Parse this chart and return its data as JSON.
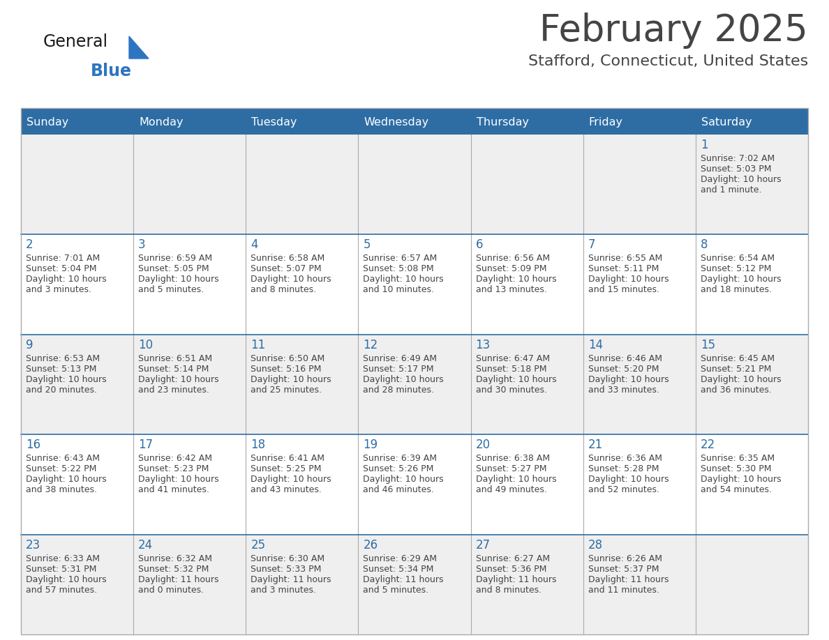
{
  "title": "February 2025",
  "subtitle": "Stafford, Connecticut, United States",
  "header_color": "#2E6DA4",
  "header_text_color": "#FFFFFF",
  "day_names": [
    "Sunday",
    "Monday",
    "Tuesday",
    "Wednesday",
    "Thursday",
    "Friday",
    "Saturday"
  ],
  "background_color": "#FFFFFF",
  "cell_bg_gray": "#EFEFEF",
  "cell_bg_white": "#FFFFFF",
  "grid_color": "#AAAAAA",
  "date_color": "#2E6DA4",
  "text_color": "#444444",
  "logo_general_color": "#1A1A1A",
  "logo_blue_color": "#2E75C0",
  "weeks": [
    [
      {
        "day": null,
        "info": null
      },
      {
        "day": null,
        "info": null
      },
      {
        "day": null,
        "info": null
      },
      {
        "day": null,
        "info": null
      },
      {
        "day": null,
        "info": null
      },
      {
        "day": null,
        "info": null
      },
      {
        "day": 1,
        "info": "Sunrise: 7:02 AM\nSunset: 5:03 PM\nDaylight: 10 hours\nand 1 minute."
      }
    ],
    [
      {
        "day": 2,
        "info": "Sunrise: 7:01 AM\nSunset: 5:04 PM\nDaylight: 10 hours\nand 3 minutes."
      },
      {
        "day": 3,
        "info": "Sunrise: 6:59 AM\nSunset: 5:05 PM\nDaylight: 10 hours\nand 5 minutes."
      },
      {
        "day": 4,
        "info": "Sunrise: 6:58 AM\nSunset: 5:07 PM\nDaylight: 10 hours\nand 8 minutes."
      },
      {
        "day": 5,
        "info": "Sunrise: 6:57 AM\nSunset: 5:08 PM\nDaylight: 10 hours\nand 10 minutes."
      },
      {
        "day": 6,
        "info": "Sunrise: 6:56 AM\nSunset: 5:09 PM\nDaylight: 10 hours\nand 13 minutes."
      },
      {
        "day": 7,
        "info": "Sunrise: 6:55 AM\nSunset: 5:11 PM\nDaylight: 10 hours\nand 15 minutes."
      },
      {
        "day": 8,
        "info": "Sunrise: 6:54 AM\nSunset: 5:12 PM\nDaylight: 10 hours\nand 18 minutes."
      }
    ],
    [
      {
        "day": 9,
        "info": "Sunrise: 6:53 AM\nSunset: 5:13 PM\nDaylight: 10 hours\nand 20 minutes."
      },
      {
        "day": 10,
        "info": "Sunrise: 6:51 AM\nSunset: 5:14 PM\nDaylight: 10 hours\nand 23 minutes."
      },
      {
        "day": 11,
        "info": "Sunrise: 6:50 AM\nSunset: 5:16 PM\nDaylight: 10 hours\nand 25 minutes."
      },
      {
        "day": 12,
        "info": "Sunrise: 6:49 AM\nSunset: 5:17 PM\nDaylight: 10 hours\nand 28 minutes."
      },
      {
        "day": 13,
        "info": "Sunrise: 6:47 AM\nSunset: 5:18 PM\nDaylight: 10 hours\nand 30 minutes."
      },
      {
        "day": 14,
        "info": "Sunrise: 6:46 AM\nSunset: 5:20 PM\nDaylight: 10 hours\nand 33 minutes."
      },
      {
        "day": 15,
        "info": "Sunrise: 6:45 AM\nSunset: 5:21 PM\nDaylight: 10 hours\nand 36 minutes."
      }
    ],
    [
      {
        "day": 16,
        "info": "Sunrise: 6:43 AM\nSunset: 5:22 PM\nDaylight: 10 hours\nand 38 minutes."
      },
      {
        "day": 17,
        "info": "Sunrise: 6:42 AM\nSunset: 5:23 PM\nDaylight: 10 hours\nand 41 minutes."
      },
      {
        "day": 18,
        "info": "Sunrise: 6:41 AM\nSunset: 5:25 PM\nDaylight: 10 hours\nand 43 minutes."
      },
      {
        "day": 19,
        "info": "Sunrise: 6:39 AM\nSunset: 5:26 PM\nDaylight: 10 hours\nand 46 minutes."
      },
      {
        "day": 20,
        "info": "Sunrise: 6:38 AM\nSunset: 5:27 PM\nDaylight: 10 hours\nand 49 minutes."
      },
      {
        "day": 21,
        "info": "Sunrise: 6:36 AM\nSunset: 5:28 PM\nDaylight: 10 hours\nand 52 minutes."
      },
      {
        "day": 22,
        "info": "Sunrise: 6:35 AM\nSunset: 5:30 PM\nDaylight: 10 hours\nand 54 minutes."
      }
    ],
    [
      {
        "day": 23,
        "info": "Sunrise: 6:33 AM\nSunset: 5:31 PM\nDaylight: 10 hours\nand 57 minutes."
      },
      {
        "day": 24,
        "info": "Sunrise: 6:32 AM\nSunset: 5:32 PM\nDaylight: 11 hours\nand 0 minutes."
      },
      {
        "day": 25,
        "info": "Sunrise: 6:30 AM\nSunset: 5:33 PM\nDaylight: 11 hours\nand 3 minutes."
      },
      {
        "day": 26,
        "info": "Sunrise: 6:29 AM\nSunset: 5:34 PM\nDaylight: 11 hours\nand 5 minutes."
      },
      {
        "day": 27,
        "info": "Sunrise: 6:27 AM\nSunset: 5:36 PM\nDaylight: 11 hours\nand 8 minutes."
      },
      {
        "day": 28,
        "info": "Sunrise: 6:26 AM\nSunset: 5:37 PM\nDaylight: 11 hours\nand 11 minutes."
      },
      {
        "day": null,
        "info": null
      }
    ]
  ]
}
